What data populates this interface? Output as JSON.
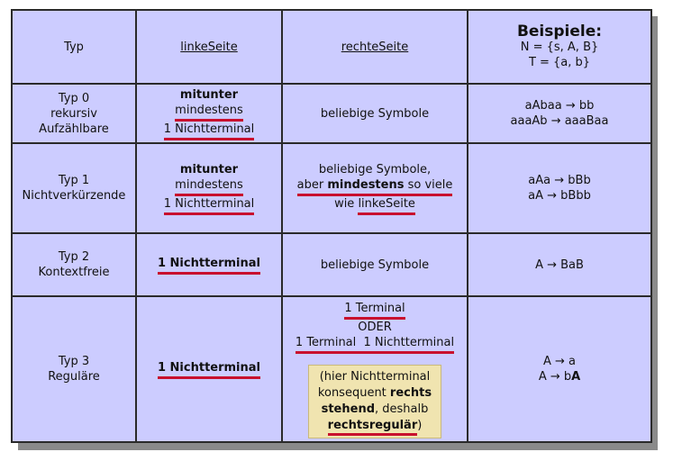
{
  "header": {
    "typ": "Typ",
    "linke": "linkeSeite",
    "rechte": "rechteSeite",
    "beispiele_title": "Beispiele:",
    "beispiele_n": "N = {s, A, B}",
    "beispiele_t": "T = {a, b}"
  },
  "rows": [
    {
      "typ_lines": [
        "Typ 0",
        "rekursiv",
        "Aufzählbare"
      ],
      "linke_lines": [
        "mitunter",
        "mindestens",
        "1 Nichtterminal"
      ],
      "rechte": "beliebige Symbole",
      "beispiele": [
        "aAbaa → bb",
        "aaaAb → aaaBaa"
      ]
    },
    {
      "typ_lines": [
        "Typ 1",
        "Nichtverkürzende"
      ],
      "linke_lines": [
        "mitunter",
        "mindestens",
        "1 Nichtterminal"
      ],
      "rechte_l1": "beliebige Symbole,",
      "rechte_l2_a": "aber ",
      "rechte_l2_b": "mindestens",
      "rechte_l2_c": " so viele",
      "rechte_l3_a": "wie ",
      "rechte_l3_b": "linkeSeite",
      "beispiele": [
        "aAa → bBb",
        "aA → bBbb"
      ]
    },
    {
      "typ_lines": [
        "Typ 2",
        "Kontextfreie"
      ],
      "linke": "1 Nichtterminal",
      "rechte": "beliebige Symbole",
      "beispiele": [
        "A → BaB"
      ]
    },
    {
      "typ_lines": [
        "Typ 3",
        "Reguläre"
      ],
      "linke": "1 Nichtterminal",
      "rechte_l1": "1 Terminal",
      "rechte_l2": "ODER",
      "rechte_l3": "1 Terminal  1 Nichtterminal",
      "note_a": "(hier Nichtterminal",
      "note_b": "konsequent ",
      "note_c": "rechts",
      "note_d": "stehend",
      "note_e": ", deshalb",
      "note_f": "rechtsregulär",
      "note_g": ")",
      "beispiel_1": "A → a",
      "beispiel_2a": "A → b",
      "beispiel_2b": "A"
    }
  ]
}
